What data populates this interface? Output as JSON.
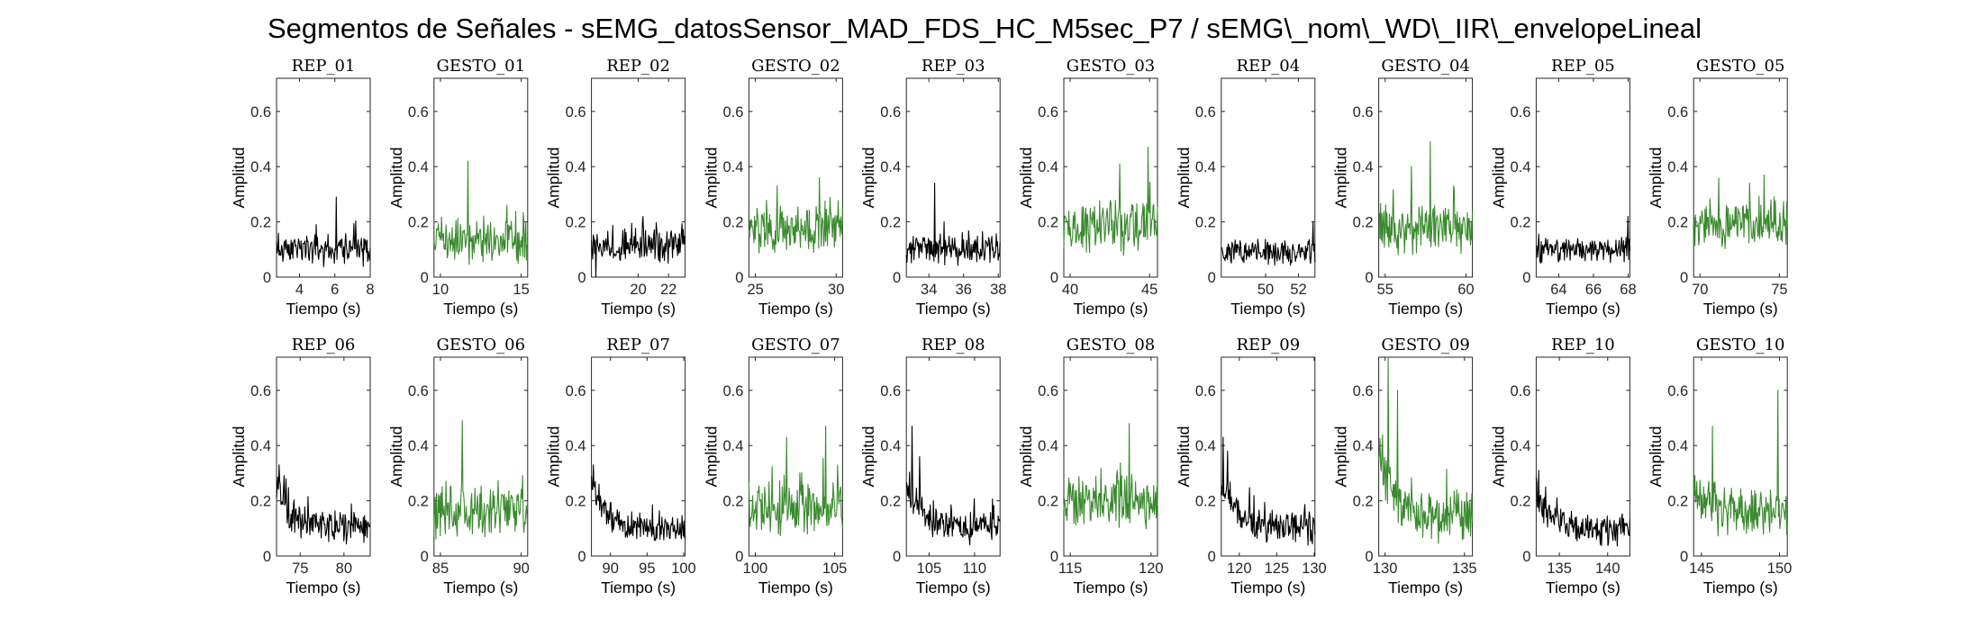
{
  "figure": {
    "title": "Segmentos de Señales - sEMG_datosSensor_MAD_FDS_HC_M5sec_P7 / sEMG\\_nom\\_WD\\_IIR\\_envelopeLineal"
  },
  "colors": {
    "rep": "#000000",
    "gesture": "#3a8a2e",
    "axes": "#262626"
  },
  "chart_data": [
    {
      "type": "line",
      "title": "REP_01",
      "kind": "rep",
      "xlabel": "Tiempo (s)",
      "ylabel": "Amplitud",
      "xlim": [
        2.7,
        8.0
      ],
      "ylim": [
        0,
        0.72
      ],
      "xticks": [
        4,
        6,
        8
      ],
      "yticks": [
        0,
        0.2,
        0.4,
        0.6
      ],
      "seed": 11,
      "base": 0.1,
      "spread": 0.045,
      "decay": 0.0,
      "peaks": [
        [
          0.64,
          0.29
        ],
        [
          0.42,
          0.19
        ]
      ]
    },
    {
      "type": "line",
      "title": "GESTO_01",
      "kind": "gesture",
      "xlabel": "Tiempo (s)",
      "ylabel": "Amplitud",
      "xlim": [
        9.6,
        15.4
      ],
      "ylim": [
        0,
        0.72
      ],
      "xticks": [
        10,
        15
      ],
      "yticks": [
        0,
        0.2,
        0.4,
        0.6
      ],
      "seed": 12,
      "base": 0.13,
      "spread": 0.06,
      "decay": 0.0,
      "peaks": [
        [
          0.36,
          0.42
        ],
        [
          0.78,
          0.26
        ]
      ]
    },
    {
      "type": "line",
      "title": "REP_02",
      "kind": "rep",
      "xlabel": "Tiempo (s)",
      "ylabel": "Amplitud",
      "xlim": [
        16.9,
        23.1
      ],
      "ylim": [
        0,
        0.72
      ],
      "xticks": [
        20,
        22
      ],
      "yticks": [
        0,
        0.2,
        0.4,
        0.6
      ],
      "seed": 13,
      "base": 0.11,
      "spread": 0.045,
      "decay": 0.0,
      "peaks": [
        [
          0.05,
          0.0
        ],
        [
          0.55,
          0.22
        ]
      ]
    },
    {
      "type": "line",
      "title": "GESTO_02",
      "kind": "gesture",
      "xlabel": "Tiempo (s)",
      "ylabel": "Amplitud",
      "xlim": [
        24.6,
        30.4
      ],
      "ylim": [
        0,
        0.72
      ],
      "xticks": [
        25,
        30
      ],
      "yticks": [
        0,
        0.2,
        0.4,
        0.6
      ],
      "seed": 14,
      "base": 0.17,
      "spread": 0.065,
      "decay": 0.0,
      "peaks": [
        [
          0.75,
          0.36
        ],
        [
          0.3,
          0.33
        ]
      ]
    },
    {
      "type": "line",
      "title": "REP_03",
      "kind": "rep",
      "xlabel": "Tiempo (s)",
      "ylabel": "Amplitud",
      "xlim": [
        32.7,
        38.1
      ],
      "ylim": [
        0,
        0.72
      ],
      "xticks": [
        34,
        36,
        38
      ],
      "yticks": [
        0,
        0.2,
        0.4,
        0.6
      ],
      "seed": 15,
      "base": 0.1,
      "spread": 0.04,
      "decay": 0.0,
      "peaks": [
        [
          0.3,
          0.34
        ],
        [
          0.4,
          0.2
        ]
      ]
    },
    {
      "type": "line",
      "title": "GESTO_03",
      "kind": "gesture",
      "xlabel": "Tiempo (s)",
      "ylabel": "Amplitud",
      "xlim": [
        39.6,
        45.5
      ],
      "ylim": [
        0,
        0.72
      ],
      "xticks": [
        40,
        45
      ],
      "yticks": [
        0,
        0.2,
        0.4,
        0.6
      ],
      "seed": 16,
      "base": 0.18,
      "spread": 0.07,
      "decay": 0.0,
      "peaks": [
        [
          0.9,
          0.47
        ],
        [
          0.6,
          0.41
        ]
      ]
    },
    {
      "type": "line",
      "title": "REP_04",
      "kind": "rep",
      "xlabel": "Tiempo (s)",
      "ylabel": "Amplitud",
      "xlim": [
        47.3,
        53.0
      ],
      "ylim": [
        0,
        0.72
      ],
      "xticks": [
        50,
        52
      ],
      "yticks": [
        0,
        0.2,
        0.4,
        0.6
      ],
      "seed": 17,
      "base": 0.09,
      "spread": 0.035,
      "decay": 0.0,
      "peaks": [
        [
          0.98,
          0.2
        ]
      ]
    },
    {
      "type": "line",
      "title": "GESTO_04",
      "kind": "gesture",
      "xlabel": "Tiempo (s)",
      "ylabel": "Amplitud",
      "xlim": [
        54.6,
        60.4
      ],
      "ylim": [
        0,
        0.72
      ],
      "xticks": [
        55,
        60
      ],
      "yticks": [
        0,
        0.2,
        0.4,
        0.6
      ],
      "seed": 18,
      "base": 0.17,
      "spread": 0.07,
      "decay": 0.0,
      "peaks": [
        [
          0.55,
          0.49
        ],
        [
          0.35,
          0.4
        ]
      ]
    },
    {
      "type": "line",
      "title": "REP_05",
      "kind": "rep",
      "xlabel": "Tiempo (s)",
      "ylabel": "Amplitud",
      "xlim": [
        62.7,
        68.1
      ],
      "ylim": [
        0,
        0.72
      ],
      "xticks": [
        64,
        66,
        68
      ],
      "yticks": [
        0,
        0.2,
        0.4,
        0.6
      ],
      "seed": 19,
      "base": 0.1,
      "spread": 0.035,
      "decay": 0.0,
      "peaks": [
        [
          0.98,
          0.22
        ]
      ]
    },
    {
      "type": "line",
      "title": "GESTO_05",
      "kind": "gesture",
      "xlabel": "Tiempo (s)",
      "ylabel": "Amplitud",
      "xlim": [
        69.6,
        75.5
      ],
      "ylim": [
        0,
        0.72
      ],
      "xticks": [
        70,
        75
      ],
      "yticks": [
        0,
        0.2,
        0.4,
        0.6
      ],
      "seed": 20,
      "base": 0.19,
      "spread": 0.06,
      "decay": 0.0,
      "peaks": [
        [
          0.75,
          0.37
        ],
        [
          0.6,
          0.34
        ]
      ]
    },
    {
      "type": "line",
      "title": "REP_06",
      "kind": "rep",
      "xlabel": "Tiempo (s)",
      "ylabel": "Amplitud",
      "xlim": [
        72.3,
        83.0
      ],
      "ylim": [
        0,
        0.72
      ],
      "xticks": [
        75,
        80
      ],
      "yticks": [
        0,
        0.2,
        0.4,
        0.6
      ],
      "seed": 21,
      "base": 0.1,
      "spread": 0.045,
      "decay": 0.14,
      "peaks": [
        [
          0.03,
          0.33
        ],
        [
          0.1,
          0.28
        ]
      ]
    },
    {
      "type": "line",
      "title": "GESTO_06",
      "kind": "gesture",
      "xlabel": "Tiempo (s)",
      "ylabel": "Amplitud",
      "xlim": [
        84.6,
        90.4
      ],
      "ylim": [
        0,
        0.72
      ],
      "xticks": [
        85,
        90
      ],
      "yticks": [
        0,
        0.2,
        0.4,
        0.6
      ],
      "seed": 22,
      "base": 0.16,
      "spread": 0.07,
      "decay": 0.0,
      "peaks": [
        [
          0.3,
          0.49
        ],
        [
          0.5,
          0.42
        ]
      ]
    },
    {
      "type": "line",
      "title": "REP_07",
      "kind": "rep",
      "xlabel": "Tiempo (s)",
      "ylabel": "Amplitud",
      "xlim": [
        87.4,
        100.2
      ],
      "ylim": [
        0,
        0.72
      ],
      "xticks": [
        90,
        95,
        100
      ],
      "yticks": [
        0,
        0.2,
        0.4,
        0.6
      ],
      "seed": 23,
      "base": 0.1,
      "spread": 0.04,
      "decay": 0.14,
      "peaks": [
        [
          0.02,
          0.33
        ],
        [
          0.08,
          0.26
        ]
      ]
    },
    {
      "type": "line",
      "title": "GESTO_07",
      "kind": "gesture",
      "xlabel": "Tiempo (s)",
      "ylabel": "Amplitud",
      "xlim": [
        99.6,
        105.5
      ],
      "ylim": [
        0,
        0.72
      ],
      "xticks": [
        100,
        105
      ],
      "yticks": [
        0,
        0.2,
        0.4,
        0.6
      ],
      "seed": 24,
      "base": 0.17,
      "spread": 0.07,
      "decay": 0.0,
      "peaks": [
        [
          0.82,
          0.47
        ],
        [
          0.4,
          0.43
        ]
      ]
    },
    {
      "type": "line",
      "title": "REP_08",
      "kind": "rep",
      "xlabel": "Tiempo (s)",
      "ylabel": "Amplitud",
      "xlim": [
        102.5,
        112.8
      ],
      "ylim": [
        0,
        0.72
      ],
      "xticks": [
        105,
        110
      ],
      "yticks": [
        0,
        0.2,
        0.4,
        0.6
      ],
      "seed": 25,
      "base": 0.1,
      "spread": 0.045,
      "decay": 0.16,
      "peaks": [
        [
          0.06,
          0.47
        ],
        [
          0.14,
          0.36
        ]
      ]
    },
    {
      "type": "line",
      "title": "GESTO_08",
      "kind": "gesture",
      "xlabel": "Tiempo (s)",
      "ylabel": "Amplitud",
      "xlim": [
        114.6,
        120.4
      ],
      "ylim": [
        0,
        0.72
      ],
      "xticks": [
        115,
        120
      ],
      "yticks": [
        0,
        0.2,
        0.4,
        0.6
      ],
      "seed": 26,
      "base": 0.2,
      "spread": 0.08,
      "decay": 0.0,
      "peaks": [
        [
          0.5,
          0.5
        ],
        [
          0.7,
          0.48
        ]
      ]
    },
    {
      "type": "line",
      "title": "REP_09",
      "kind": "rep",
      "xlabel": "Tiempo (s)",
      "ylabel": "Amplitud",
      "xlim": [
        117.6,
        130.1
      ],
      "ylim": [
        0,
        0.72
      ],
      "xticks": [
        120,
        125,
        130
      ],
      "yticks": [
        0,
        0.2,
        0.4,
        0.6
      ],
      "seed": 27,
      "base": 0.1,
      "spread": 0.045,
      "decay": 0.16,
      "peaks": [
        [
          0.02,
          0.43
        ],
        [
          0.07,
          0.38
        ]
      ]
    },
    {
      "type": "line",
      "title": "GESTO_09",
      "kind": "gesture",
      "xlabel": "Tiempo (s)",
      "ylabel": "Amplitud",
      "xlim": [
        129.6,
        135.5
      ],
      "ylim": [
        0,
        0.72
      ],
      "xticks": [
        130,
        135
      ],
      "yticks": [
        0,
        0.2,
        0.4,
        0.6
      ],
      "seed": 28,
      "base": 0.13,
      "spread": 0.07,
      "decay": 0.25,
      "peaks": [
        [
          0.1,
          0.72
        ],
        [
          0.2,
          0.6
        ]
      ]
    },
    {
      "type": "line",
      "title": "REP_10",
      "kind": "rep",
      "xlabel": "Tiempo (s)",
      "ylabel": "Amplitud",
      "xlim": [
        132.6,
        142.3
      ],
      "ylim": [
        0,
        0.72
      ],
      "xticks": [
        135,
        140
      ],
      "yticks": [
        0,
        0.2,
        0.4,
        0.6
      ],
      "seed": 29,
      "base": 0.09,
      "spread": 0.04,
      "decay": 0.14,
      "peaks": [
        [
          0.03,
          0.31
        ],
        [
          0.1,
          0.25
        ]
      ]
    },
    {
      "type": "line",
      "title": "GESTO_10",
      "kind": "gesture",
      "xlabel": "Tiempo (s)",
      "ylabel": "Amplitud",
      "xlim": [
        144.5,
        150.5
      ],
      "ylim": [
        0,
        0.72
      ],
      "xticks": [
        145,
        150
      ],
      "yticks": [
        0,
        0.2,
        0.4,
        0.6
      ],
      "seed": 30,
      "base": 0.15,
      "spread": 0.07,
      "decay": 0.08,
      "peaks": [
        [
          0.9,
          0.6
        ],
        [
          0.2,
          0.47
        ]
      ]
    }
  ]
}
